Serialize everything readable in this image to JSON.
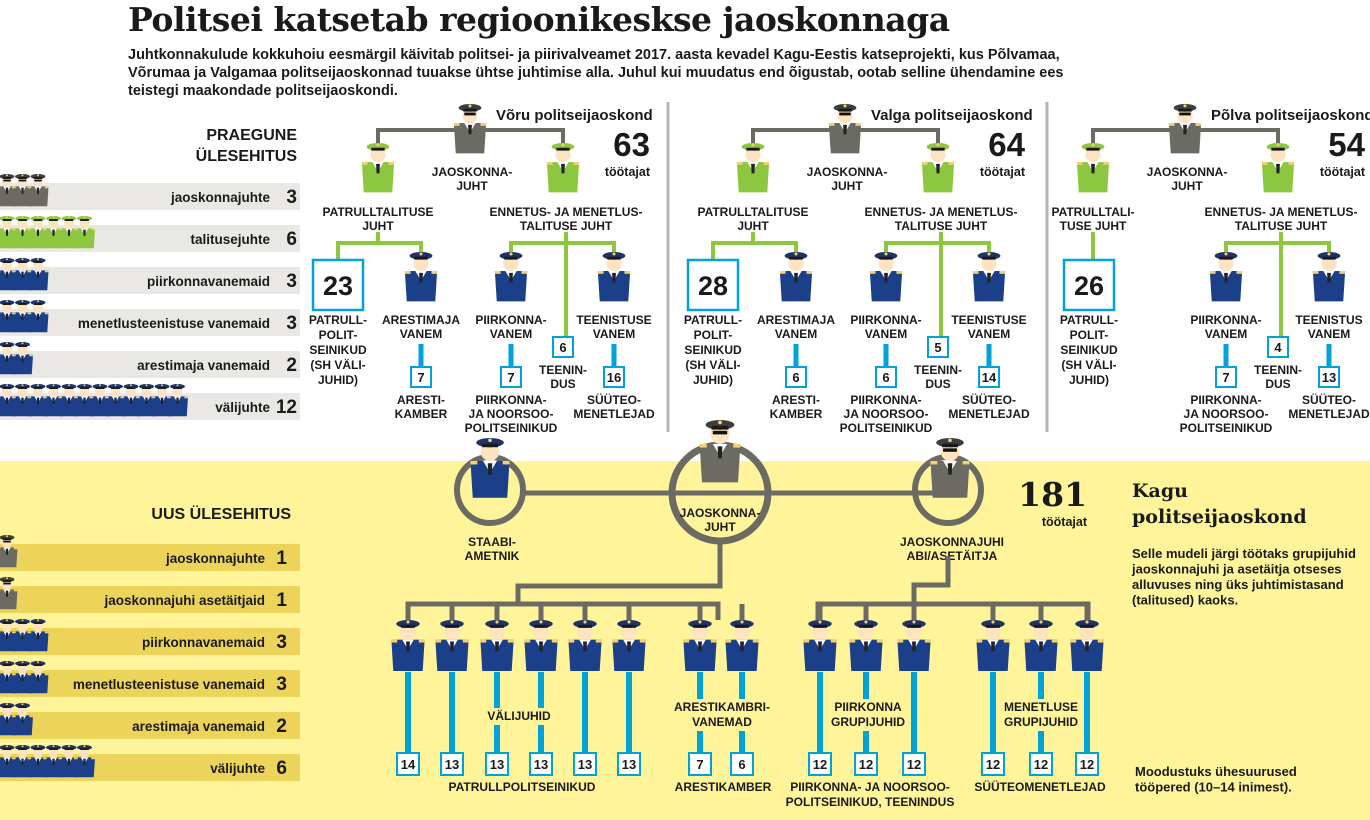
{
  "title": "Politsei katsetab regioonikeskse jaoskonnaga",
  "intro": "Juhtkonnakulude kokkuhoiu eesmärgil käivitab politsei- ja piirivalveamet 2017. aasta kevadel Kagu-Eestis katseprojekti, kus Põlvamaa, Võrumaa ja Valgamaa politseijaoskonnad tuuakse ühtse juhtimise alla. Juhul kui muudatus end õigustab, ootab selline ühendamine ees teistegi maakondade politseijaoskondi.",
  "colors": {
    "green": "#8dc63f",
    "navy": "#1c3f8a",
    "cyan": "#00a2d9",
    "gray": "#6b6b63",
    "yellow_bg": "#fff49a",
    "band": "#e9e8e4",
    "band_new": "#ecd45a"
  },
  "current": {
    "header": [
      "PRAEGUNE",
      "ÜLESEHITUS"
    ],
    "rows": [
      {
        "label": "jaoskonnajuhte",
        "count": "3",
        "icon": "chief",
        "n": 3
      },
      {
        "label": "talitusejuhte",
        "count": "6",
        "icon": "green",
        "n": 6
      },
      {
        "label": "piirkonnavanemaid",
        "count": "3",
        "icon": "navy",
        "n": 3
      },
      {
        "label": "menetlusteenistuse vanemaid",
        "count": "3",
        "icon": "navy",
        "n": 3
      },
      {
        "label": "arestimaja vanemaid",
        "count": "2",
        "icon": "navy",
        "n": 2
      },
      {
        "label": "välijuhte",
        "count": "12",
        "icon": "navy",
        "n": 12
      }
    ]
  },
  "stations": [
    {
      "name": "Võru politseijaoskond",
      "total": "63",
      "unit": "töötajat",
      "head": [
        "JAOSKONNA-",
        "JUHT"
      ],
      "patrol_head": [
        "PATRULLTALITUSE",
        "JUHT"
      ],
      "prev_head": [
        "ENNETUS- JA MENETLUS-",
        "TALITUSE JUHT"
      ],
      "patrol_count": "23",
      "patrol_label": [
        "PATRULL-",
        "POLIT-",
        "SEINIKUD",
        "(SH VÄLI-",
        "JUHID)"
      ],
      "detention_head": [
        "ARESTIMAJA",
        "VANEM"
      ],
      "detention_count": "7",
      "detention_label": [
        "ARESTI-",
        "KAMBER"
      ],
      "district_head": [
        "PIIRKONNA-",
        "VANEM"
      ],
      "district_count": "7",
      "district_label": [
        "PIIRKONNA-",
        "JA NOORSOO-",
        "POLITSEINIKUD"
      ],
      "service_count": "6",
      "service_label": [
        "TEENIN-",
        "DUS"
      ],
      "proc_head": [
        "TEENISTUSE",
        "VANEM"
      ],
      "proc_count": "16",
      "proc_label": [
        "SÜÜTEO-",
        "MENETLEJAD"
      ]
    },
    {
      "name": "Valga politseijaoskond",
      "total": "64",
      "unit": "töötajat",
      "head": [
        "JAOSKONNA-",
        "JUHT"
      ],
      "patrol_head": [
        "PATRULLTALITUSE",
        "JUHT"
      ],
      "prev_head": [
        "ENNETUS- JA MENETLUS-",
        "TALITUSE JUHT"
      ],
      "patrol_count": "28",
      "patrol_label": [
        "PATRULL-",
        "POLIT-",
        "SEINIKUD",
        "(SH VÄLI-",
        "JUHID)"
      ],
      "detention_head": [
        "ARESTIMAJA",
        "VANEM"
      ],
      "detention_count": "6",
      "detention_label": [
        "ARESTI-",
        "KAMBER"
      ],
      "district_head": [
        "PIIRKONNA-",
        "VANEM"
      ],
      "district_count": "6",
      "district_label": [
        "PIIRKONNA-",
        "JA NOORSOO-",
        "POLITSEINIKUD"
      ],
      "service_count": "5",
      "service_label": [
        "TEENIN-",
        "DUS"
      ],
      "proc_head": [
        "TEENISTUSE",
        "VANEM"
      ],
      "proc_count": "14",
      "proc_label": [
        "SÜÜTEO-",
        "MENETLEJAD"
      ]
    },
    {
      "name": "Põlva politseijaoskond",
      "total": "54",
      "unit": "töötajat",
      "head": [
        "JAOSKONNA-",
        "JUHT"
      ],
      "patrol_head": [
        "PATRULLTALI-",
        "TUSE JUHT"
      ],
      "prev_head": [
        "ENNETUS- JA MENETLUS-",
        "TALITUSE JUHT"
      ],
      "patrol_count": "26",
      "patrol_label": [
        "PATRULL-",
        "POLIT-",
        "SEINIKUD",
        "(SH VÄLI-",
        "JUHID)"
      ],
      "district_head": [
        "PIIRKONNA-",
        "VANEM"
      ],
      "district_count": "7",
      "district_label": [
        "PIIRKONNA-",
        "JA NOORSOO-",
        "POLITSEINIKUD"
      ],
      "service_count": "4",
      "service_label": [
        "TEENIN-",
        "DUS"
      ],
      "proc_head": [
        "TEENISTUS",
        "VANEM"
      ],
      "proc_count": "13",
      "proc_label": [
        "SÜÜTEO-",
        "MENETLEJAD"
      ]
    }
  ],
  "new_structure": {
    "header": "UUS ÜLESEHITUS",
    "rows": [
      {
        "label": "jaoskonnajuhte",
        "count": "1",
        "icon": "chief",
        "n": 1
      },
      {
        "label": "jaoskonnajuhi asetäitjaid",
        "count": "1",
        "icon": "chief",
        "n": 1
      },
      {
        "label": "piirkonnavanemaid",
        "count": "3",
        "icon": "navy",
        "n": 3
      },
      {
        "label": "menetlusteenistuse vanemaid",
        "count": "3",
        "icon": "navy",
        "n": 3
      },
      {
        "label": "arestimaja vanemaid",
        "count": "2",
        "icon": "navy",
        "n": 2
      },
      {
        "label": "välijuhte",
        "count": "6",
        "icon": "navy",
        "n": 6
      }
    ],
    "total": "181",
    "unit": "töötajat",
    "name": [
      "Kagu",
      "politseijaoskond"
    ],
    "description": [
      "Selle mudeli järgi töötaks grupijuhid",
      "jaoskonnajuhi ja asetäitja otseses",
      "alluvuses ning üks juhtimistasand",
      "(talitused) kaoks."
    ],
    "head": [
      "JAOSKONNA-",
      "JUHT"
    ],
    "staff": [
      "STAABI-",
      "AMETNIK"
    ],
    "deputy": [
      "JAOSKONNAJUHI",
      "ABI/ASETÄITJA"
    ],
    "field_leaders_label": "VÄLIJUHID",
    "patrol_counts": [
      "14",
      "13",
      "13",
      "13",
      "13",
      "13"
    ],
    "patrol_label": "PATRULLPOLITSEINIKUD",
    "detention_head": [
      "ARESTIKAMBRI-",
      "VANEMAD"
    ],
    "detention_counts": [
      "7",
      "6"
    ],
    "detention_label": "ARESTIKAMBER",
    "district_head": [
      "PIIRKONNA",
      "GRUPIJUHID"
    ],
    "district_counts": [
      "12",
      "12",
      "12"
    ],
    "district_label": [
      "PIIRKONNA- JA NOORSOO-",
      "POLITSEINIKUD, TEENINDUS"
    ],
    "proc_head": [
      "MENETLUSE",
      "GRUPIJUHID"
    ],
    "proc_counts": [
      "12",
      "12",
      "12"
    ],
    "proc_label": "SÜÜTEOMENETLEJAD",
    "footnote": [
      "Moodustuks ühesuurused",
      "tööpered (10–14 inimest)."
    ]
  }
}
